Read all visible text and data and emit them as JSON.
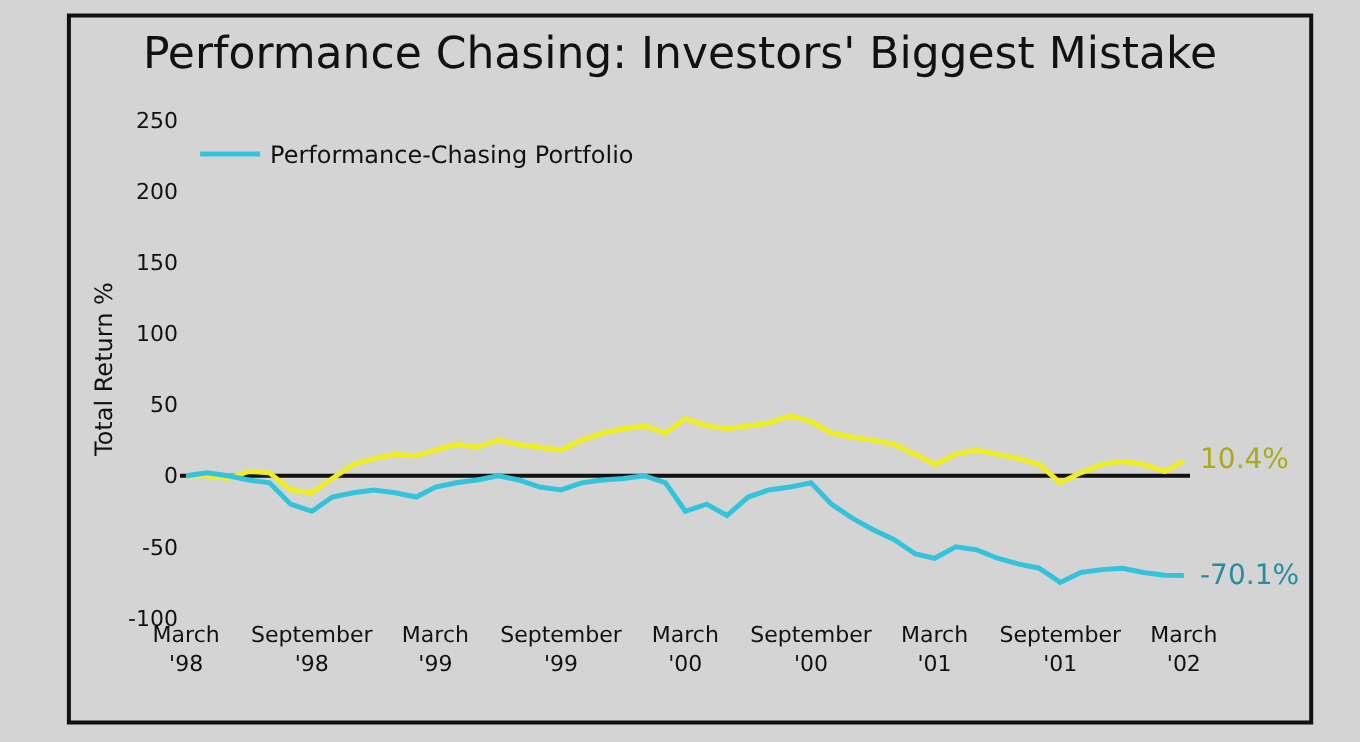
{
  "chart_data": {
    "type": "line",
    "title": "Performance Chasing: Investors' Biggest Mistake",
    "ylabel": "Total Return %",
    "x": [
      "1998-03",
      "1998-04",
      "1998-05",
      "1998-06",
      "1998-07",
      "1998-08",
      "1998-09",
      "1998-10",
      "1998-11",
      "1998-12",
      "1999-01",
      "1999-02",
      "1999-03",
      "1999-04",
      "1999-05",
      "1999-06",
      "1999-07",
      "1999-08",
      "1999-09",
      "1999-10",
      "1999-11",
      "1999-12",
      "2000-01",
      "2000-02",
      "2000-03",
      "2000-04",
      "2000-05",
      "2000-06",
      "2000-07",
      "2000-08",
      "2000-09",
      "2000-10",
      "2000-11",
      "2000-12",
      "2001-01",
      "2001-02",
      "2001-03",
      "2001-04",
      "2001-05",
      "2001-06",
      "2001-07",
      "2001-08",
      "2001-09",
      "2001-10",
      "2001-11",
      "2001-12",
      "2002-01",
      "2002-02",
      "2002-03"
    ],
    "series": [
      {
        "color": "#eeee22",
        "values": [
          0,
          0,
          -2,
          3,
          2,
          -10,
          -12,
          -2,
          8,
          12,
          15,
          14,
          18,
          22,
          20,
          25,
          22,
          20,
          18,
          25,
          30,
          33,
          35,
          30,
          40,
          35,
          33,
          35,
          37,
          42,
          38,
          30,
          27,
          25,
          22,
          15,
          8,
          15,
          18,
          15,
          12,
          8,
          -5,
          2,
          8,
          10,
          8,
          3,
          10.4
        ]
      },
      {
        "name": "Performance-Chasing Portfolio",
        "color": "#33c4dc",
        "values": [
          0,
          2,
          0,
          -3,
          -5,
          -20,
          -25,
          -15,
          -12,
          -10,
          -12,
          -15,
          -8,
          -5,
          -3,
          0,
          -3,
          -8,
          -10,
          -5,
          -3,
          -2,
          0,
          -5,
          -25,
          -20,
          -28,
          -15,
          -10,
          -8,
          -5,
          -20,
          -30,
          -38,
          -45,
          -55,
          -58,
          -50,
          -52,
          -58,
          -62,
          -65,
          -75,
          -68,
          -66,
          -65,
          -68,
          -70,
          -70.1
        ]
      }
    ],
    "annotations": [
      {
        "text": "10.4%",
        "x": "2002-03",
        "y": 10.4
      },
      {
        "text": "-70.1%",
        "x": "2002-03",
        "y": -70.1
      }
    ],
    "xlim": [
      "1998-02-20",
      "2002-03-10"
    ],
    "xticks": [
      {
        "value": "1998-03",
        "label": "March\n'98"
      },
      {
        "value": "1998-09",
        "label": "September\n'98"
      },
      {
        "value": "1999-03",
        "label": "March\n'99"
      },
      {
        "value": "1999-09",
        "label": "September\n'99"
      },
      {
        "value": "2000-03",
        "label": "March\n'00"
      },
      {
        "value": "2000-09",
        "label": "September\n'00"
      },
      {
        "value": "2001-03",
        "label": "March\n'01"
      },
      {
        "value": "2001-09",
        "label": "September\n'01"
      },
      {
        "value": "2002-03",
        "label": "March\n'02"
      }
    ],
    "ylim": [
      -100,
      250
    ],
    "ref_lines": [
      {
        "axis": "y",
        "value": 0,
        "color": "#111111"
      }
    ],
    "yticks": [
      -100,
      -50,
      0,
      50,
      100,
      150,
      200,
      250
    ],
    "grid": false,
    "legend": "top left",
    "marker": "none",
    "line_style": "solid"
  }
}
